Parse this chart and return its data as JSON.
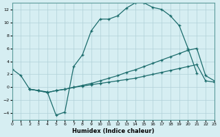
{
  "xlabel": "Humidex (Indice chaleur)",
  "bg_color": "#d6eef2",
  "grid_color": "#b0d0d8",
  "line_color": "#1a6b6b",
  "xlim": [
    0,
    23
  ],
  "ylim": [
    -5,
    13
  ],
  "xticks": [
    0,
    1,
    2,
    3,
    4,
    5,
    6,
    7,
    8,
    9,
    10,
    11,
    12,
    13,
    14,
    15,
    16,
    17,
    18,
    19,
    20,
    21,
    22,
    23
  ],
  "yticks": [
    -4,
    -2,
    0,
    2,
    4,
    6,
    8,
    10,
    12
  ],
  "line1_x": [
    0,
    1,
    2,
    3,
    4,
    5,
    6,
    7,
    8,
    9,
    10,
    11,
    12,
    13,
    14,
    15,
    16,
    17,
    18,
    19,
    20,
    21
  ],
  "line1_y": [
    2.8,
    1.8,
    -0.3,
    -0.5,
    -0.7,
    -4.3,
    -3.8,
    3.2,
    5.0,
    8.7,
    10.5,
    10.5,
    11.0,
    12.2,
    13.0,
    13.0,
    12.3,
    12.0,
    11.0,
    9.5,
    6.0,
    2.2
  ],
  "line2_x": [
    2,
    3,
    4,
    5,
    6,
    7,
    8,
    9,
    10,
    11,
    12,
    13,
    14,
    15,
    16,
    17,
    18,
    19,
    20,
    21,
    22,
    23
  ],
  "line2_y": [
    -0.3,
    -0.5,
    -0.8,
    -0.5,
    -0.3,
    0.0,
    0.3,
    0.6,
    1.0,
    1.4,
    1.8,
    2.3,
    2.7,
    3.2,
    3.7,
    4.2,
    4.7,
    5.2,
    5.7,
    6.0,
    1.8,
    1.0
  ],
  "line3_x": [
    2,
    3,
    4,
    5,
    6,
    7,
    8,
    9,
    10,
    11,
    12,
    13,
    14,
    15,
    16,
    17,
    18,
    19,
    20,
    21,
    22,
    23
  ],
  "line3_y": [
    -0.3,
    -0.5,
    -0.8,
    -0.5,
    -0.3,
    0.0,
    0.2,
    0.4,
    0.6,
    0.8,
    1.0,
    1.2,
    1.4,
    1.7,
    2.0,
    2.3,
    2.6,
    2.9,
    3.2,
    3.5,
    1.0,
    0.8
  ]
}
